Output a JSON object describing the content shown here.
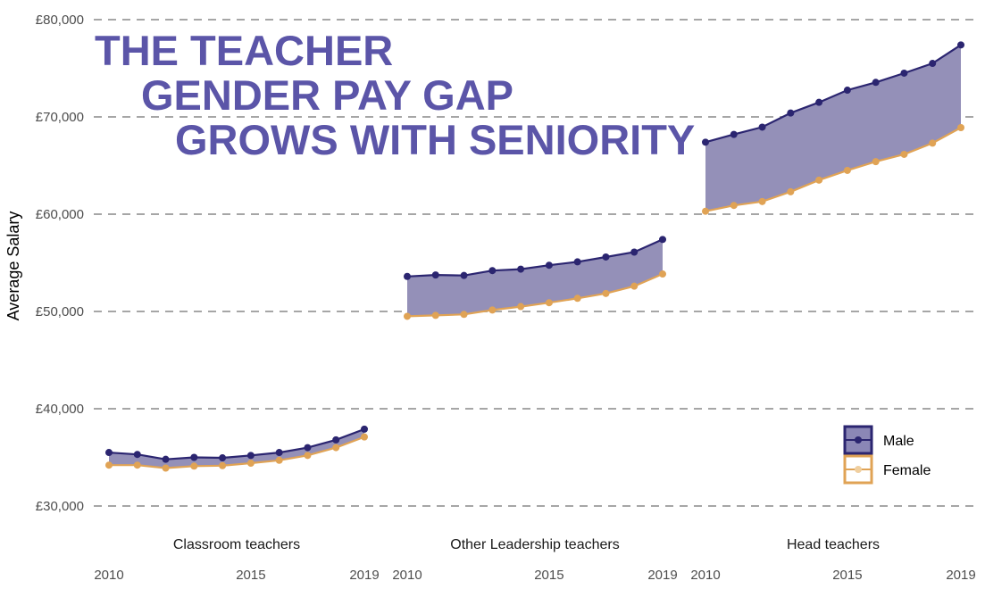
{
  "title_lines": [
    "THE TEACHER",
    "GENDER PAY GAP",
    "GROWS WITH SENIORITY"
  ],
  "chart_data": {
    "type": "line",
    "title": "THE TEACHER GENDER PAY GAP GROWS WITH SENIORITY",
    "ylabel": "Average Salary",
    "ylim": [
      26000,
      82000
    ],
    "y_ticks": [
      30000,
      40000,
      50000,
      60000,
      70000,
      80000
    ],
    "y_tick_labels": [
      "£30,000",
      "£40,000",
      "£50,000",
      "£60,000",
      "£70,000",
      "£80,000"
    ],
    "x": [
      2010,
      2011,
      2012,
      2013,
      2014,
      2015,
      2016,
      2017,
      2018,
      2019
    ],
    "x_ticks": [
      2010,
      2015,
      2019
    ],
    "grid": "horizontal dashed",
    "legend_position": "bottom-right",
    "gap_fill_color": "#9490b8",
    "colors": {
      "Male": "#2b2570",
      "Female": "#e0a355"
    },
    "legend": [
      "Male",
      "Female"
    ],
    "facets": [
      {
        "label": "Classroom teachers",
        "series": [
          {
            "name": "Male",
            "values": [
              35500,
              35300,
              34800,
              35000,
              34950,
              35200,
              35500,
              36000,
              36800,
              37900
            ]
          },
          {
            "name": "Female",
            "values": [
              34200,
              34200,
              33900,
              34100,
              34150,
              34400,
              34700,
              35200,
              36000,
              37100
            ]
          }
        ]
      },
      {
        "label": "Other Leadership teachers",
        "series": [
          {
            "name": "Male",
            "values": [
              53600,
              53750,
              53700,
              54200,
              54350,
              54750,
              55100,
              55600,
              56100,
              57400
            ]
          },
          {
            "name": "Female",
            "values": [
              49500,
              49600,
              49700,
              50150,
              50500,
              50900,
              51350,
              51850,
              52600,
              53850
            ]
          }
        ]
      },
      {
        "label": "Head teachers",
        "series": [
          {
            "name": "Male",
            "values": [
              67400,
              68200,
              68950,
              70400,
              71500,
              72750,
              73550,
              74500,
              75500,
              77400
            ]
          },
          {
            "name": "Female",
            "values": [
              60300,
              60900,
              61300,
              62300,
              63500,
              64500,
              65400,
              66150,
              67300,
              68900
            ]
          }
        ]
      }
    ]
  }
}
